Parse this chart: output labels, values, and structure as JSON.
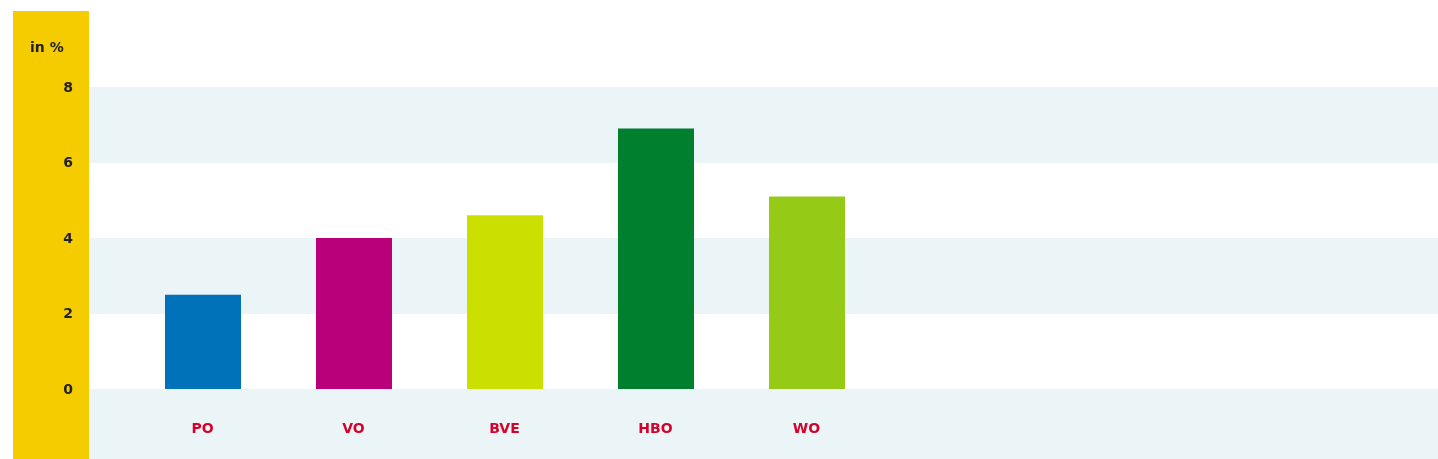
{
  "chart_data": {
    "type": "bar",
    "ylabel": "in %",
    "categories": [
      "PO",
      "VO",
      "BVE",
      "HBO",
      "WO"
    ],
    "values": [
      2.5,
      4.0,
      4.6,
      6.9,
      5.1
    ],
    "colors": [
      "#0072b9",
      "#b9007a",
      "#cce000",
      "#00802f",
      "#95cb17"
    ],
    "ylim": [
      0,
      8
    ],
    "yticks": [
      0,
      2,
      4,
      6,
      8
    ]
  }
}
